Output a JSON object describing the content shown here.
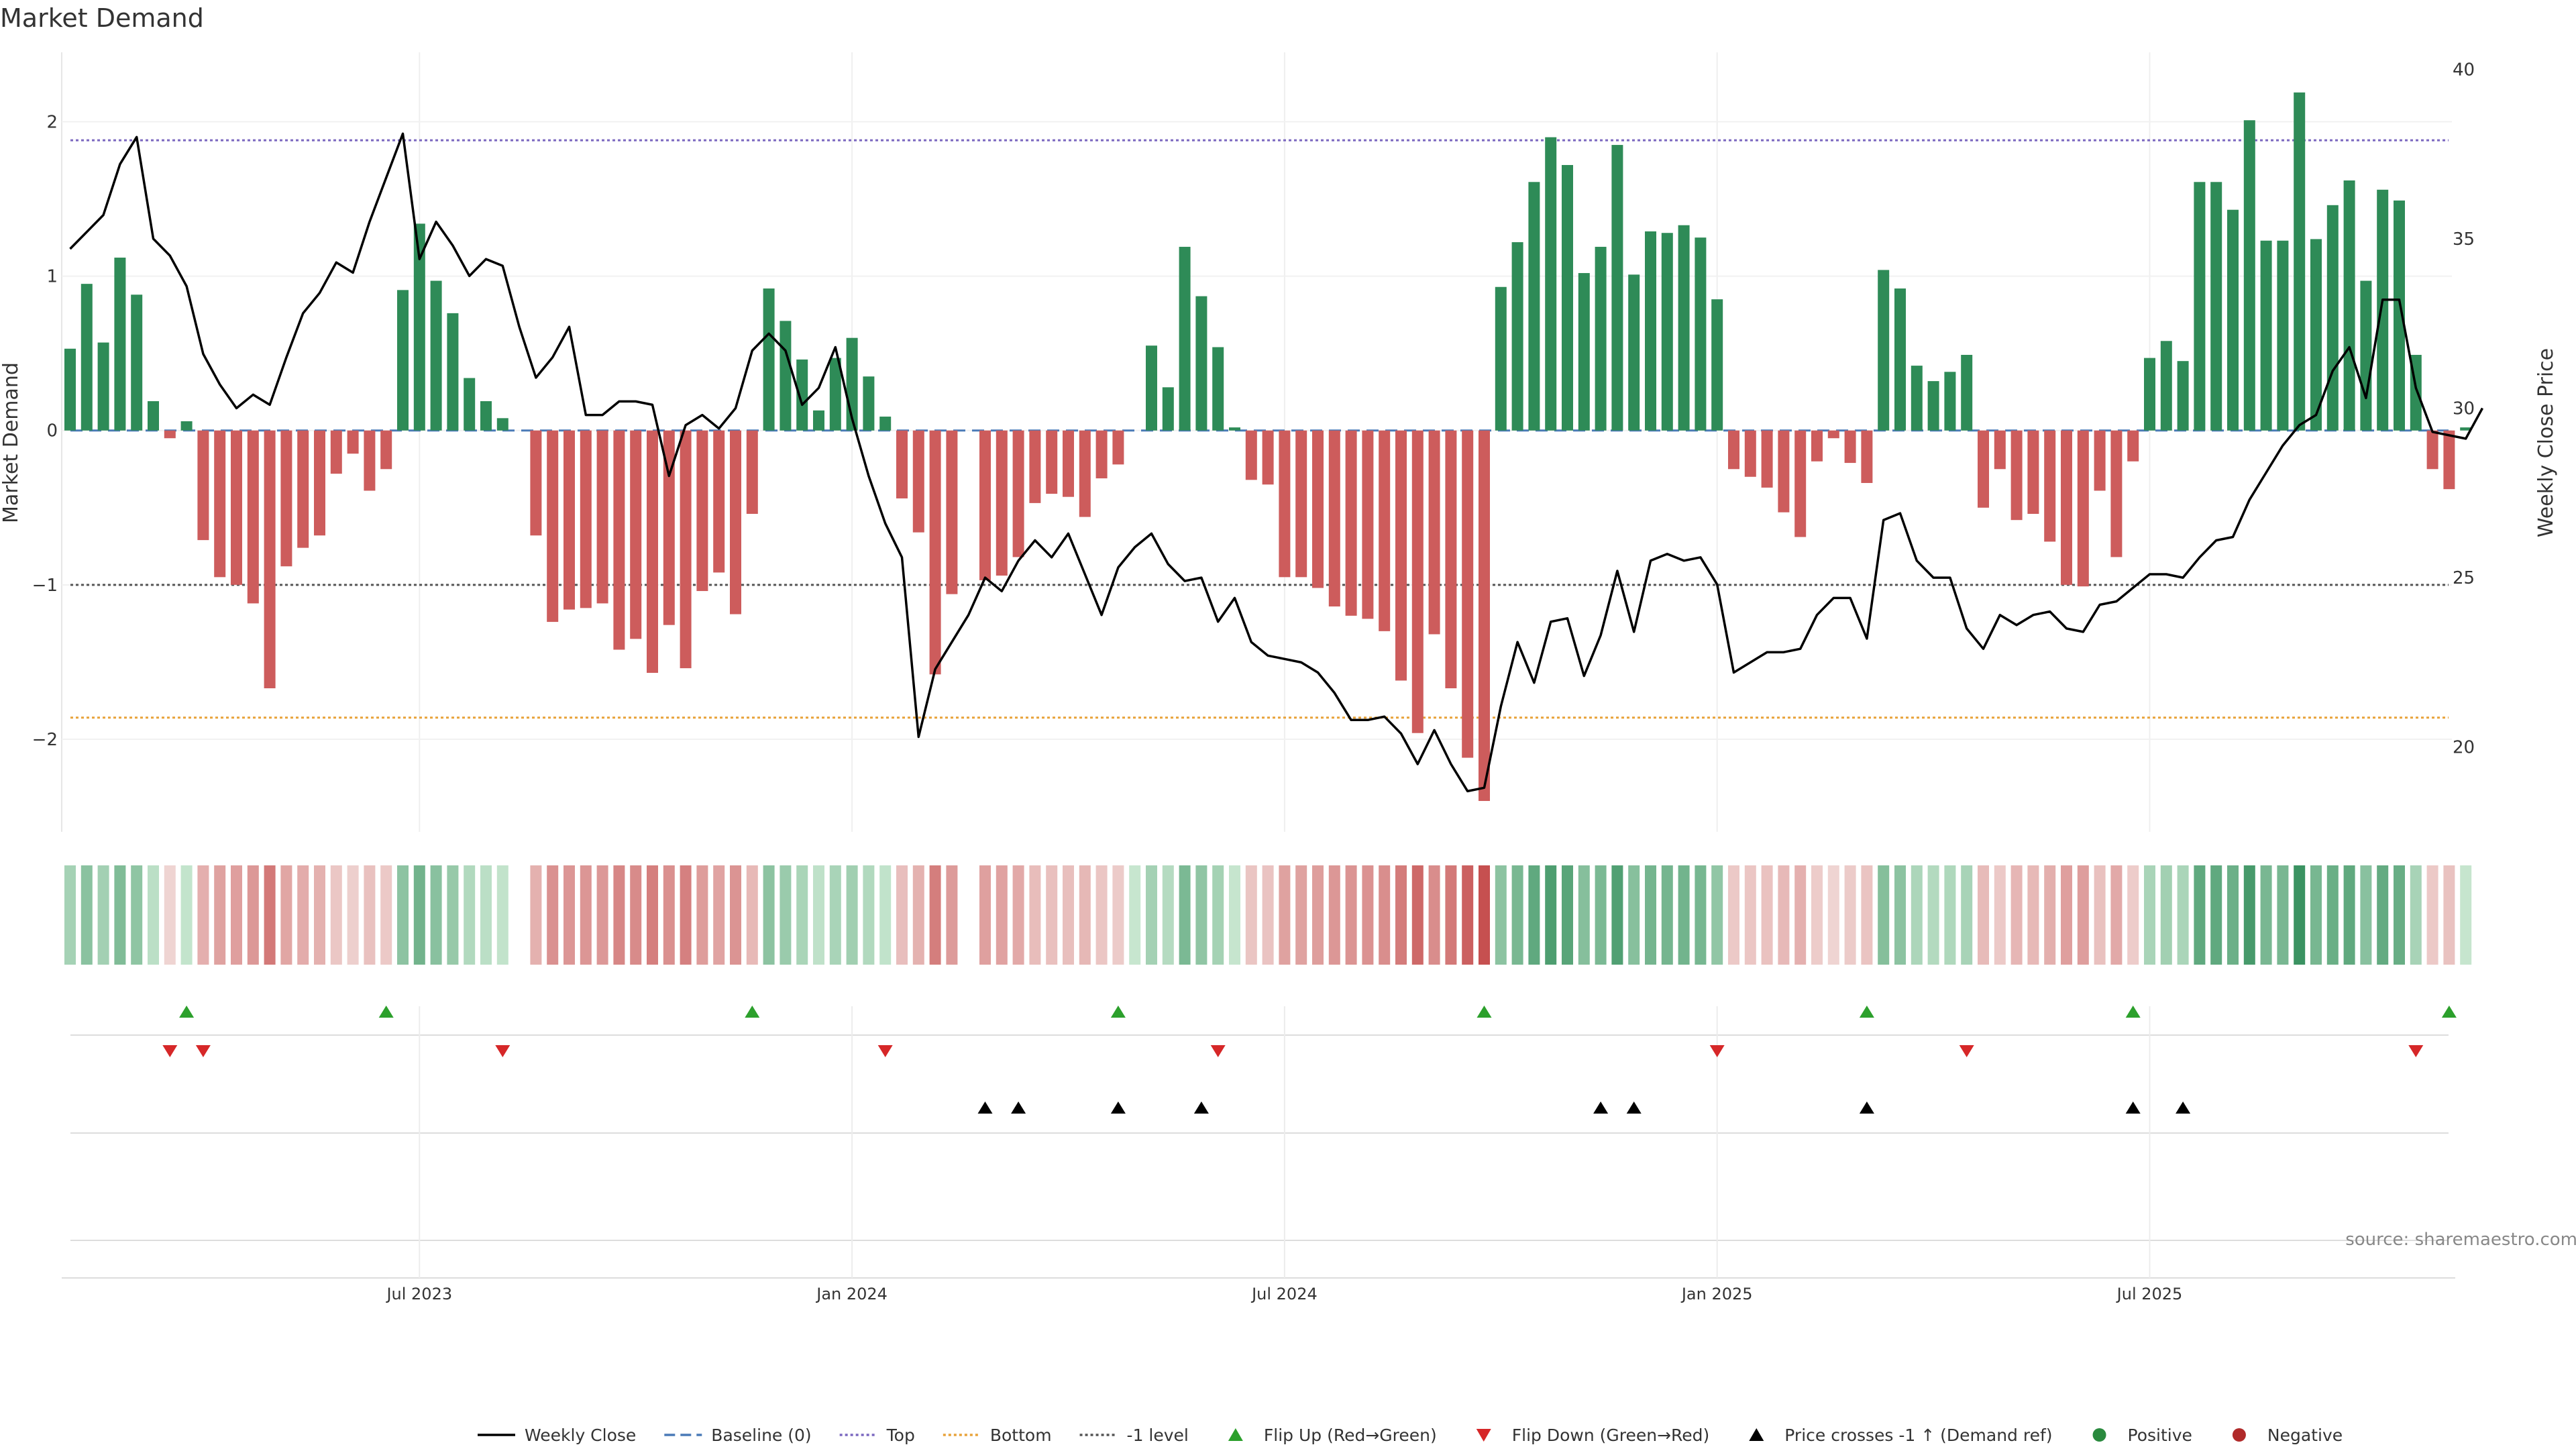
{
  "chart_data": {
    "type": "bar",
    "title": "Market Demand",
    "ylabel_left": "Market Demand",
    "ylabel_right": "Weekly Close Price",
    "ylim_left": [
      -2.6,
      2.45
    ],
    "ylim_right": [
      17.5,
      40.5
    ],
    "yticks_left": [
      {
        "value": 2,
        "label": "2"
      },
      {
        "value": 1,
        "label": "1"
      },
      {
        "value": 0,
        "label": "0"
      },
      {
        "value": -1,
        "label": "−1"
      },
      {
        "value": -2,
        "label": "−2"
      }
    ],
    "yticks_right": [
      {
        "value": 40,
        "label": "40"
      },
      {
        "value": 35,
        "label": "35"
      },
      {
        "value": 30,
        "label": "30"
      },
      {
        "value": 25,
        "label": "25"
      },
      {
        "value": 20,
        "label": "20"
      }
    ],
    "xticks": [
      {
        "index": 21,
        "label": "Jul 2023"
      },
      {
        "index": 47,
        "label": "Jan 2024"
      },
      {
        "index": 73,
        "label": "Jul 2024"
      },
      {
        "index": 99,
        "label": "Jan 2025"
      },
      {
        "index": 125,
        "label": "Jul 2025"
      }
    ],
    "reference_lines": {
      "top": 1.88,
      "bottom": -1.86,
      "minus_one": -1,
      "baseline": 0
    },
    "demand": [
      0.53,
      0.95,
      0.57,
      1.12,
      0.88,
      0.19,
      -0.05,
      0.06,
      -0.71,
      -0.95,
      -1.0,
      -1.12,
      -1.67,
      -0.88,
      -0.76,
      -0.68,
      -0.28,
      -0.15,
      -0.39,
      -0.25,
      0.91,
      1.34,
      0.97,
      0.76,
      0.34,
      0.19,
      0.08,
      null,
      -0.68,
      -1.24,
      -1.16,
      -1.15,
      -1.12,
      -1.42,
      -1.35,
      -1.57,
      -1.26,
      -1.54,
      -1.04,
      -0.92,
      -1.19,
      -0.54,
      0.92,
      0.71,
      0.46,
      0.13,
      0.47,
      0.6,
      0.35,
      0.09,
      -0.44,
      -0.66,
      -1.58,
      -1.06,
      null,
      -0.97,
      -0.94,
      -0.82,
      -0.47,
      -0.41,
      -0.43,
      -0.56,
      -0.31,
      -0.22,
      0,
      0.55,
      0.28,
      1.19,
      0.87,
      0.54,
      0.02,
      -0.32,
      -0.35,
      -0.95,
      -0.95,
      -1.02,
      -1.14,
      -1.2,
      -1.22,
      -1.3,
      -1.62,
      -1.96,
      -1.32,
      -1.67,
      -2.12,
      -2.4,
      0.93,
      1.22,
      1.61,
      1.9,
      1.72,
      1.02,
      1.19,
      1.85,
      1.01,
      1.29,
      1.28,
      1.33,
      1.25,
      0.85,
      -0.25,
      -0.3,
      -0.37,
      -0.53,
      -0.69,
      -0.2,
      -0.05,
      -0.21,
      -0.34,
      1.04,
      0.92,
      0.42,
      0.32,
      0.38,
      0.49,
      -0.5,
      -0.25,
      -0.58,
      -0.54,
      -0.72,
      -1.0,
      -1.01,
      -0.39,
      -0.82,
      -0.2,
      0.47,
      0.58,
      0.45,
      1.61,
      1.61,
      1.43,
      2.01,
      1.23,
      1.23,
      2.19,
      1.24,
      1.46,
      1.62,
      0.97,
      1.56,
      1.49,
      0.49,
      -0.25,
      -0.38,
      0.02
    ],
    "weekly_close": [
      34.7,
      35.2,
      35.7,
      37.2,
      38.0,
      35.0,
      34.5,
      33.6,
      31.6,
      30.7,
      30.0,
      30.4,
      30.1,
      31.5,
      32.8,
      33.4,
      34.3,
      34.0,
      35.5,
      36.8,
      38.1,
      34.4,
      35.5,
      34.8,
      33.9,
      34.4,
      34.2,
      32.4,
      30.9,
      31.5,
      32.4,
      29.8,
      29.8,
      30.2,
      30.2,
      30.1,
      28.0,
      29.5,
      29.8,
      29.4,
      30.0,
      31.7,
      32.2,
      31.7,
      30.1,
      30.6,
      31.8,
      29.7,
      28.0,
      26.6,
      25.6,
      20.3,
      22.3,
      23.1,
      23.9,
      25.0,
      24.6,
      25.5,
      26.1,
      25.6,
      26.3,
      25.1,
      23.9,
      25.3,
      25.9,
      26.3,
      25.4,
      24.9,
      25.0,
      23.7,
      24.4,
      23.1,
      22.7,
      22.6,
      22.5,
      22.2,
      21.6,
      20.8,
      20.8,
      20.9,
      20.4,
      19.5,
      20.5,
      19.5,
      18.7,
      18.8,
      21.2,
      23.1,
      21.9,
      23.7,
      23.8,
      22.1,
      23.3,
      25.2,
      23.4,
      25.5,
      25.7,
      25.5,
      25.6,
      24.8,
      22.2,
      22.5,
      22.8,
      22.8,
      22.9,
      23.9,
      24.4,
      24.4,
      23.2,
      26.7,
      26.9,
      25.5,
      25.0,
      25.0,
      23.5,
      22.9,
      23.9,
      23.6,
      23.9,
      24.0,
      23.5,
      23.4,
      24.2,
      24.3,
      24.7,
      25.1,
      25.1,
      25.0,
      25.6,
      26.1,
      26.2,
      27.3,
      28.1,
      28.9,
      29.5,
      29.8,
      31.1,
      31.8,
      30.3,
      33.2,
      33.2,
      30.6,
      29.3,
      29.2,
      29.1,
      30.0
    ],
    "flip_up": [
      7,
      19,
      41,
      63,
      85,
      108,
      124,
      143
    ],
    "flip_down": [
      6,
      8,
      26,
      49,
      69,
      99,
      114,
      141
    ],
    "price_cross": [
      55,
      57,
      63,
      68,
      92,
      94,
      108,
      124,
      127
    ],
    "legend": [
      {
        "label": "Weekly Close",
        "icon": "solid-line",
        "color": "#000000"
      },
      {
        "label": "Baseline (0)",
        "icon": "dashed-line",
        "color": "#4a7ab7"
      },
      {
        "label": "Top",
        "icon": "dotted-line",
        "color": "#7b68c0"
      },
      {
        "label": "Bottom",
        "icon": "dotted-line",
        "color": "#e8a33a"
      },
      {
        "label": "-1 level",
        "icon": "dotted-line",
        "color": "#555555"
      },
      {
        "label": "Flip Up (Red→Green)",
        "icon": "triangle-up",
        "color": "#2ca02c"
      },
      {
        "label": "Flip Down (Green→Red)",
        "icon": "triangle-down",
        "color": "#d62728"
      },
      {
        "label": "Price crosses -1 ↑ (Demand ref)",
        "icon": "triangle-up",
        "color": "#000000"
      },
      {
        "label": "Positive",
        "icon": "circle",
        "color": "#2a8a3e"
      },
      {
        "label": "Negative",
        "icon": "circle",
        "color": "#b02a2a"
      }
    ]
  },
  "colors": {
    "positive": "#2e8b57",
    "negative": "#cd5c5c",
    "price": "#000000",
    "top": "#7b68c0",
    "bottom": "#e8a33a",
    "minus_one": "#555555",
    "baseline": "#4a7ab7"
  },
  "source": "source: sharemaestro.com"
}
